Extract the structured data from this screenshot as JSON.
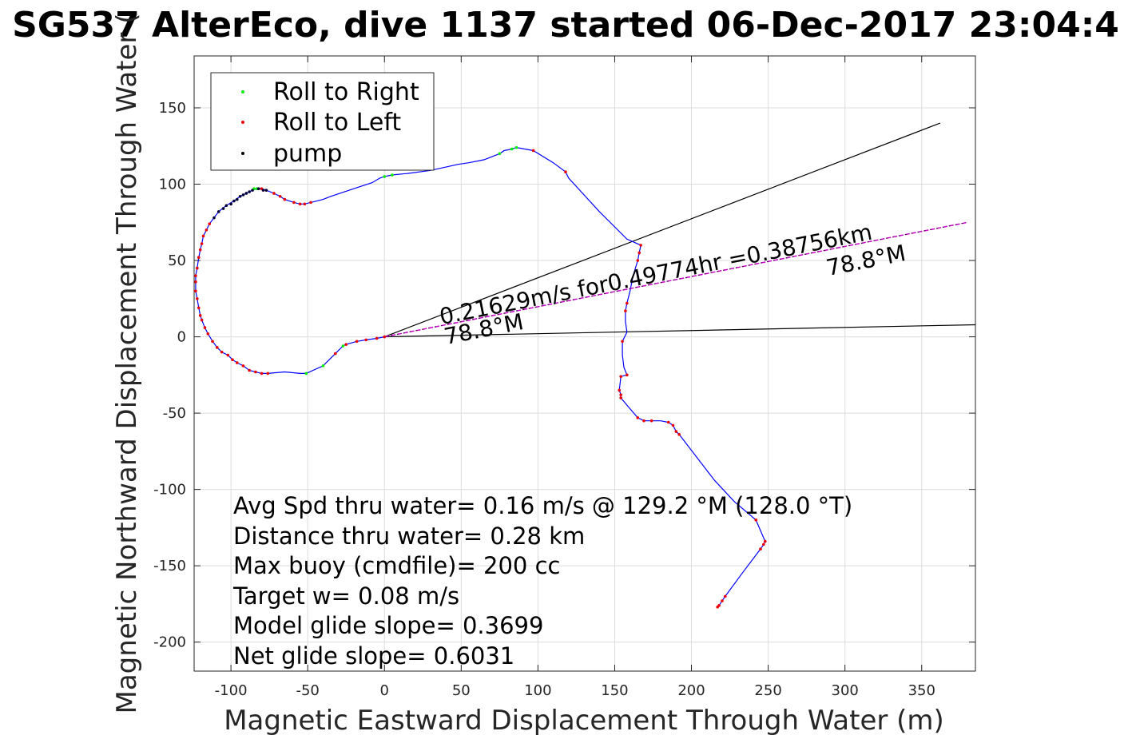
{
  "chart_data": {
    "type": "line",
    "title": "SG537 AlterEco, dive 1137 started 06-Dec-2017 23:04:4",
    "xlabel": "Magnetic Eastward Displacement Through Water (m)",
    "ylabel": "Magnetic Northward Displacement Through Water (",
    "xlim": [
      -124,
      385
    ],
    "ylim": [
      -219,
      184
    ],
    "xticks": [
      -100,
      -50,
      0,
      50,
      100,
      150,
      200,
      250,
      300,
      350
    ],
    "yticks": [
      150,
      100,
      50,
      0,
      -50,
      -100,
      -150,
      -200
    ],
    "grid": true,
    "legend": {
      "location": "top-left",
      "entries": [
        {
          "label": "Roll to Right",
          "color": "#00ee00"
        },
        {
          "label": "Roll to Left",
          "color": "#ee0000"
        },
        {
          "label": "pump",
          "color": "#000000"
        }
      ]
    },
    "colors": {
      "track": "#0000ff",
      "current_vector": "#cc00cc",
      "wedge_lines": "#000000",
      "roll_right": "#00ee00",
      "roll_left": "#ee0000",
      "pump": "#000033",
      "grid": "#dcdcdc"
    },
    "track": [
      [
        0,
        0
      ],
      [
        -5,
        -1
      ],
      [
        -12,
        -2
      ],
      [
        -18,
        -3
      ],
      [
        -25,
        -5
      ],
      [
        -27,
        -6
      ],
      [
        -32,
        -11
      ],
      [
        -40,
        -19
      ],
      [
        -51,
        -24
      ],
      [
        -55,
        -24
      ],
      [
        -65,
        -23
      ],
      [
        -76,
        -24
      ],
      [
        -80,
        -24
      ],
      [
        -84,
        -23
      ],
      [
        -88,
        -22
      ],
      [
        -92,
        -19
      ],
      [
        -96,
        -17
      ],
      [
        -99,
        -15
      ],
      [
        -102,
        -12
      ],
      [
        -106,
        -10
      ],
      [
        -109,
        -7
      ],
      [
        -112,
        -3
      ],
      [
        -115,
        2
      ],
      [
        -117,
        6
      ],
      [
        -119,
        11
      ],
      [
        -120,
        14
      ],
      [
        -121,
        19
      ],
      [
        -122,
        25
      ],
      [
        -123,
        30
      ],
      [
        -123,
        36
      ],
      [
        -123,
        40
      ],
      [
        -122,
        45
      ],
      [
        -121,
        52
      ],
      [
        -120,
        57
      ],
      [
        -119,
        61
      ],
      [
        -118,
        66
      ],
      [
        -116,
        70
      ],
      [
        -114,
        74
      ],
      [
        -111,
        78
      ],
      [
        -108,
        82
      ],
      [
        -103,
        86
      ],
      [
        -98,
        89
      ],
      [
        -94,
        92
      ],
      [
        -90,
        94
      ],
      [
        -86,
        96
      ],
      [
        -83,
        97
      ],
      [
        -80,
        97
      ],
      [
        -77,
        96
      ],
      [
        -72,
        94
      ],
      [
        -68,
        92
      ],
      [
        -65,
        90
      ],
      [
        -59,
        88
      ],
      [
        -55,
        87
      ],
      [
        -52,
        87
      ],
      [
        -48,
        88
      ],
      [
        -40,
        90
      ],
      [
        -35,
        92
      ],
      [
        -20,
        97
      ],
      [
        -8,
        101
      ],
      [
        -3,
        104
      ],
      [
        0,
        105
      ],
      [
        5,
        106
      ],
      [
        15,
        107
      ],
      [
        30,
        109
      ],
      [
        48,
        113
      ],
      [
        55,
        114
      ],
      [
        65,
        116
      ],
      [
        75,
        120
      ],
      [
        78,
        122
      ],
      [
        83,
        123
      ],
      [
        86,
        124
      ],
      [
        97,
        122
      ],
      [
        110,
        114
      ],
      [
        118,
        108
      ],
      [
        120,
        104
      ],
      [
        140,
        82
      ],
      [
        158,
        64
      ],
      [
        167,
        60
      ],
      [
        166,
        55
      ],
      [
        165,
        50
      ],
      [
        162,
        40
      ],
      [
        160,
        30
      ],
      [
        158,
        22
      ],
      [
        157,
        17
      ],
      [
        157,
        10
      ],
      [
        158,
        3
      ],
      [
        155,
        -3
      ],
      [
        155,
        -12
      ],
      [
        156,
        -20
      ],
      [
        158,
        -25
      ],
      [
        154,
        -26
      ],
      [
        153,
        -35
      ],
      [
        154,
        -38
      ],
      [
        154,
        -40
      ],
      [
        159,
        -46
      ],
      [
        165,
        -53
      ],
      [
        169,
        -55
      ],
      [
        174,
        -55
      ],
      [
        180,
        -55
      ],
      [
        185,
        -56
      ],
      [
        188,
        -58
      ],
      [
        190,
        -62
      ],
      [
        192,
        -64
      ],
      [
        215,
        -94
      ],
      [
        228,
        -108
      ],
      [
        242,
        -120
      ],
      [
        248,
        -134
      ],
      [
        247,
        -136
      ],
      [
        245,
        -139
      ],
      [
        233,
        -155
      ],
      [
        222,
        -170
      ],
      [
        220,
        -173
      ],
      [
        218,
        -176
      ],
      [
        217,
        -177
      ]
    ],
    "roll_right_points": [
      [
        -27,
        -6
      ],
      [
        -40,
        -19
      ],
      [
        -51,
        -24
      ],
      [
        -83,
        97
      ],
      [
        -85,
        97
      ],
      [
        0,
        105
      ],
      [
        5,
        106
      ],
      [
        75,
        120
      ],
      [
        83,
        123
      ],
      [
        86,
        124
      ]
    ],
    "roll_left_points": [
      [
        0,
        0
      ],
      [
        -5,
        -1
      ],
      [
        -12,
        -2
      ],
      [
        -18,
        -3
      ],
      [
        -25,
        -5
      ],
      [
        -32,
        -11
      ],
      [
        -76,
        -24
      ],
      [
        -80,
        -24
      ],
      [
        -84,
        -23
      ],
      [
        -88,
        -22
      ],
      [
        -92,
        -19
      ],
      [
        -96,
        -17
      ],
      [
        -99,
        -15
      ],
      [
        -102,
        -12
      ],
      [
        -106,
        -10
      ],
      [
        -109,
        -7
      ],
      [
        -112,
        -3
      ],
      [
        -115,
        2
      ],
      [
        -117,
        6
      ],
      [
        -119,
        11
      ],
      [
        -120,
        14
      ],
      [
        -121,
        19
      ],
      [
        -122,
        25
      ],
      [
        -123,
        30
      ],
      [
        -123,
        36
      ],
      [
        -123,
        40
      ],
      [
        -122,
        45
      ],
      [
        -121,
        52
      ],
      [
        -120,
        57
      ],
      [
        -119,
        61
      ],
      [
        -118,
        66
      ],
      [
        -116,
        70
      ],
      [
        -114,
        74
      ],
      [
        -80,
        97
      ],
      [
        -77,
        96
      ],
      [
        -72,
        94
      ],
      [
        -68,
        92
      ],
      [
        -65,
        90
      ],
      [
        -59,
        88
      ],
      [
        -55,
        87
      ],
      [
        -52,
        87
      ],
      [
        -48,
        88
      ],
      [
        97,
        122
      ],
      [
        118,
        108
      ],
      [
        167,
        60
      ],
      [
        166,
        55
      ],
      [
        165,
        50
      ],
      [
        158,
        22
      ],
      [
        157,
        17
      ],
      [
        155,
        -3
      ],
      [
        158,
        -25
      ],
      [
        154,
        -26
      ],
      [
        153,
        -35
      ],
      [
        154,
        -38
      ],
      [
        154,
        -40
      ],
      [
        165,
        -53
      ],
      [
        169,
        -55
      ],
      [
        174,
        -55
      ],
      [
        185,
        -56
      ],
      [
        188,
        -58
      ],
      [
        190,
        -62
      ],
      [
        192,
        -64
      ],
      [
        242,
        -120
      ],
      [
        248,
        -134
      ],
      [
        247,
        -136
      ],
      [
        245,
        -139
      ],
      [
        222,
        -170
      ],
      [
        220,
        -173
      ],
      [
        218,
        -176
      ],
      [
        217,
        -177
      ]
    ],
    "pump_points": [
      [
        -111,
        78
      ],
      [
        -108,
        82
      ],
      [
        -105,
        84
      ],
      [
        -103,
        86
      ],
      [
        -100,
        87
      ],
      [
        -98,
        89
      ],
      [
        -96,
        90
      ],
      [
        -94,
        92
      ],
      [
        -92,
        93
      ],
      [
        -90,
        94
      ],
      [
        -88,
        95
      ],
      [
        -86,
        96
      ],
      [
        -82,
        97
      ],
      [
        -79,
        96
      ],
      [
        -77,
        96
      ]
    ],
    "current_vector": {
      "from": [
        0,
        0
      ],
      "to": [
        380,
        75
      ]
    },
    "wedge_lines": [
      {
        "from": [
          0,
          0
        ],
        "to": [
          362,
          140
        ]
      },
      {
        "from": [
          0,
          0
        ],
        "to": [
          390,
          8
        ]
      }
    ],
    "annotations": [
      {
        "text": "0.21629m/s for0.49774hr =0.38756km",
        "x": 37,
        "y": 8,
        "angle_deg": -11.2
      },
      {
        "text": "78.8°M",
        "x": 40,
        "y": -5,
        "angle_deg": -11.2
      },
      {
        "text": "78.8°M",
        "x": 289,
        "y": 40,
        "angle_deg": -11.2
      }
    ],
    "notes": [
      "Avg Spd thru water=  0.16 m/s @ 129.2 °M (128.0 °T)",
      "Distance thru water=  0.28 km",
      "Max buoy (cmdfile)= 200 cc",
      "Target w= 0.08 m/s",
      "Model glide slope= 0.3699",
      "Net glide slope= 0.6031"
    ]
  }
}
